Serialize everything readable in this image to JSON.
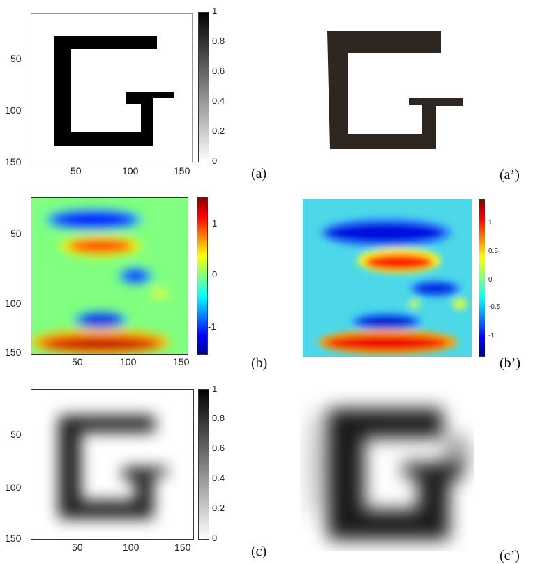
{
  "panels": [
    {
      "id": "a",
      "label": "(a)",
      "render": "G shape",
      "colormap": "gray",
      "x_ticks": [
        "50",
        "100",
        "150"
      ],
      "y_ticks": [
        "50",
        "100",
        "150"
      ],
      "colorbar_ticks": [
        "1",
        "0.8",
        "0.6",
        "0.4",
        "0.2",
        "0"
      ]
    },
    {
      "id": "a-prime",
      "label": "(a’)",
      "render": "photo of G shape"
    },
    {
      "id": "b",
      "label": "(b)",
      "render": "jet field",
      "colormap": "jet",
      "x_ticks": [
        "50",
        "100",
        "150"
      ],
      "y_ticks": [
        "50",
        "100",
        "150"
      ],
      "colorbar_ticks": [
        "1",
        "0",
        "-1"
      ]
    },
    {
      "id": "b-prime",
      "label": "(b’)",
      "render": "measured jet field",
      "colormap": "jet",
      "colorbar_ticks": [
        "1",
        "0.5",
        "0",
        "-0.5",
        "-1"
      ]
    },
    {
      "id": "c",
      "label": "(c)",
      "render": "blurred G",
      "colormap": "gray",
      "x_ticks": [
        "50",
        "100",
        "150"
      ],
      "y_ticks": [
        "50",
        "100",
        "150"
      ],
      "colorbar_ticks": [
        "1",
        "0.8",
        "0.6",
        "0.4",
        "0.2",
        "0"
      ]
    },
    {
      "id": "c-prime",
      "label": "(c’)",
      "render": "reconstructed blurred G"
    }
  ],
  "colors": {
    "jet_dark_red": "#800000",
    "jet_red": "#ff2000",
    "jet_yellow": "#f5f020",
    "jet_green": "#70e070",
    "jet_cyan": "#40e0f0",
    "jet_blue": "#0040ff",
    "jet_dark_blue": "#00008f",
    "shape_black": "#000000",
    "photo_brown": "#2e2620"
  }
}
